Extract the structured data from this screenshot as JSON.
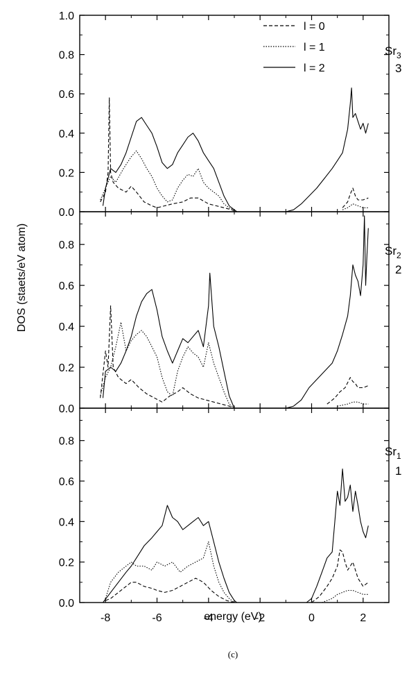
{
  "figure": {
    "caption": "(c)"
  },
  "chart_data": {
    "type": "line",
    "xlabel": "energy (eV)",
    "ylabel": "DOS (staets/eV atom)",
    "xlim": [
      -9.0,
      3.0
    ],
    "x_ticks": [
      -8,
      -6,
      -4,
      -2,
      0,
      2
    ],
    "x_tick_labels": [
      "-8",
      "-6",
      "-4",
      "-2",
      "0",
      "2"
    ],
    "legend": {
      "placement": "top-right of top panel",
      "entries": [
        {
          "label": "l = 0",
          "style": "dashed"
        },
        {
          "label": "l = 1",
          "style": "dotted"
        },
        {
          "label": "l = 2",
          "style": "solid"
        }
      ]
    },
    "grid": false,
    "panels": [
      {
        "id": "Sr3",
        "label_main": "Sr",
        "label_sub": "3",
        "label_number": "3",
        "ylim": [
          0.0,
          1.0
        ],
        "y_ticks": [
          0.0,
          0.2,
          0.4,
          0.6,
          0.8,
          1.0
        ],
        "y_tick_labels": [
          "0.0",
          "0.2",
          "0.4",
          "0.6",
          "0.8",
          "1.0"
        ],
        "series": [
          {
            "name": "l = 0",
            "style": "dashed",
            "x": [
              -8.2,
              -8.0,
              -7.9,
              -7.85,
              -7.8,
              -7.7,
              -7.5,
              -7.2,
              -7.0,
              -6.8,
              -6.5,
              -6.2,
              -6.0,
              -5.7,
              -5.4,
              -5.0,
              -4.7,
              -4.4,
              -4.0,
              -3.7,
              -3.4,
              -3.1,
              -2.9
            ],
            "y": [
              0.05,
              0.1,
              0.2,
              0.58,
              0.2,
              0.15,
              0.12,
              0.1,
              0.13,
              0.1,
              0.05,
              0.03,
              0.02,
              0.03,
              0.04,
              0.05,
              0.07,
              0.07,
              0.04,
              0.03,
              0.02,
              0.01,
              0.0
            ]
          },
          {
            "name": "l = 1",
            "style": "dotted",
            "x": [
              -8.2,
              -8.0,
              -7.8,
              -7.6,
              -7.3,
              -7.0,
              -6.8,
              -6.6,
              -6.4,
              -6.2,
              -6.0,
              -5.8,
              -5.6,
              -5.4,
              -5.2,
              -5.0,
              -4.8,
              -4.6,
              -4.4,
              -4.2,
              -4.0,
              -3.8,
              -3.6,
              -3.4,
              -3.2,
              -3.0,
              -2.9
            ],
            "y": [
              0.06,
              0.12,
              0.18,
              0.15,
              0.22,
              0.28,
              0.31,
              0.27,
              0.22,
              0.18,
              0.12,
              0.08,
              0.05,
              0.06,
              0.12,
              0.16,
              0.19,
              0.18,
              0.22,
              0.15,
              0.12,
              0.1,
              0.08,
              0.04,
              0.02,
              0.01,
              0.0
            ]
          },
          {
            "name": "l = 2",
            "style": "solid",
            "x": [
              -8.1,
              -8.0,
              -7.8,
              -7.6,
              -7.4,
              -7.2,
              -7.0,
              -6.8,
              -6.6,
              -6.4,
              -6.2,
              -6.0,
              -5.8,
              -5.6,
              -5.4,
              -5.2,
              -5.0,
              -4.8,
              -4.6,
              -4.4,
              -4.2,
              -4.0,
              -3.8,
              -3.6,
              -3.4,
              -3.2,
              -3.0,
              -2.9
            ],
            "y": [
              0.03,
              0.12,
              0.22,
              0.2,
              0.24,
              0.3,
              0.38,
              0.46,
              0.48,
              0.44,
              0.4,
              0.33,
              0.25,
              0.22,
              0.24,
              0.3,
              0.34,
              0.38,
              0.4,
              0.36,
              0.3,
              0.26,
              0.22,
              0.15,
              0.08,
              0.03,
              0.01,
              0.0
            ]
          }
        ],
        "series_cb": [
          {
            "name": "l = 0",
            "style": "dashed",
            "x": [
              1.2,
              1.4,
              1.5,
              1.6,
              1.7,
              1.8,
              2.0,
              2.2
            ],
            "y": [
              0.02,
              0.05,
              0.09,
              0.12,
              0.08,
              0.06,
              0.06,
              0.07
            ]
          },
          {
            "name": "l = 1",
            "style": "dotted",
            "x": [
              1.2,
              1.4,
              1.5,
              1.6,
              1.8,
              2.0,
              2.2
            ],
            "y": [
              0.01,
              0.02,
              0.03,
              0.04,
              0.03,
              0.02,
              0.02
            ]
          },
          {
            "name": "l = 2",
            "style": "solid",
            "x": [
              -1.0,
              -0.7,
              -0.4,
              -0.1,
              0.2,
              0.5,
              0.8,
              1.0,
              1.2,
              1.3,
              1.4,
              1.5,
              1.55,
              1.6,
              1.7,
              1.8,
              1.9,
              2.0,
              2.1,
              2.2
            ],
            "y": [
              0.0,
              0.01,
              0.04,
              0.08,
              0.12,
              0.17,
              0.22,
              0.26,
              0.3,
              0.36,
              0.42,
              0.55,
              0.63,
              0.48,
              0.5,
              0.46,
              0.42,
              0.45,
              0.4,
              0.45
            ]
          }
        ]
      },
      {
        "id": "Sr2",
        "label_main": "Sr",
        "label_sub": "2",
        "label_number": "2",
        "ylim": [
          0.0,
          0.96
        ],
        "y_ticks": [
          0.0,
          0.2,
          0.4,
          0.6,
          0.8
        ],
        "y_tick_labels": [
          "0.0",
          "0.2",
          "0.4",
          "0.6",
          "0.8"
        ],
        "series": [
          {
            "name": "l = 0",
            "style": "dashed",
            "x": [
              -8.2,
              -8.0,
              -7.9,
              -7.8,
              -7.7,
              -7.5,
              -7.2,
              -7.0,
              -6.7,
              -6.4,
              -6.1,
              -5.8,
              -5.5,
              -5.2,
              -5.0,
              -4.7,
              -4.4,
              -4.1,
              -3.8,
              -3.5,
              -3.2,
              -3.0
            ],
            "y": [
              0.05,
              0.28,
              0.2,
              0.5,
              0.2,
              0.15,
              0.12,
              0.14,
              0.1,
              0.07,
              0.05,
              0.03,
              0.06,
              0.08,
              0.1,
              0.07,
              0.05,
              0.04,
              0.03,
              0.02,
              0.01,
              0.0
            ]
          },
          {
            "name": "l = 1",
            "style": "dotted",
            "x": [
              -8.2,
              -8.0,
              -7.8,
              -7.6,
              -7.4,
              -7.2,
              -7.0,
              -6.8,
              -6.6,
              -6.4,
              -6.2,
              -6.0,
              -5.8,
              -5.6,
              -5.4,
              -5.2,
              -5.0,
              -4.8,
              -4.6,
              -4.4,
              -4.2,
              -4.0,
              -3.8,
              -3.6,
              -3.4,
              -3.2,
              -3.0
            ],
            "y": [
              0.06,
              0.15,
              0.2,
              0.3,
              0.42,
              0.28,
              0.33,
              0.36,
              0.38,
              0.35,
              0.3,
              0.25,
              0.15,
              0.08,
              0.06,
              0.18,
              0.25,
              0.3,
              0.27,
              0.25,
              0.2,
              0.32,
              0.22,
              0.15,
              0.08,
              0.02,
              0.0
            ]
          },
          {
            "name": "l = 2",
            "style": "solid",
            "x": [
              -8.1,
              -8.0,
              -7.8,
              -7.6,
              -7.4,
              -7.2,
              -7.0,
              -6.8,
              -6.6,
              -6.4,
              -6.2,
              -6.0,
              -5.8,
              -5.6,
              -5.4,
              -5.2,
              -5.0,
              -4.8,
              -4.6,
              -4.4,
              -4.2,
              -4.0,
              -3.95,
              -3.8,
              -3.6,
              -3.4,
              -3.2,
              -3.0
            ],
            "y": [
              0.05,
              0.18,
              0.2,
              0.18,
              0.22,
              0.28,
              0.35,
              0.45,
              0.52,
              0.56,
              0.58,
              0.48,
              0.35,
              0.28,
              0.22,
              0.28,
              0.34,
              0.32,
              0.35,
              0.38,
              0.3,
              0.5,
              0.66,
              0.4,
              0.3,
              0.18,
              0.06,
              0.0
            ]
          }
        ],
        "series_cb": [
          {
            "name": "l = 0",
            "style": "dashed",
            "x": [
              0.6,
              0.9,
              1.1,
              1.3,
              1.5,
              1.6,
              1.7,
              1.8,
              2.0,
              2.2
            ],
            "y": [
              0.02,
              0.05,
              0.08,
              0.1,
              0.15,
              0.13,
              0.12,
              0.1,
              0.1,
              0.11
            ]
          },
          {
            "name": "l = 1",
            "style": "dotted",
            "x": [
              1.0,
              1.4,
              1.6,
              1.8,
              2.0,
              2.2
            ],
            "y": [
              0.01,
              0.02,
              0.03,
              0.03,
              0.02,
              0.02
            ]
          },
          {
            "name": "l = 2",
            "style": "solid",
            "x": [
              -1.0,
              -0.7,
              -0.4,
              -0.1,
              0.2,
              0.5,
              0.8,
              1.0,
              1.2,
              1.4,
              1.5,
              1.6,
              1.7,
              1.8,
              1.9,
              2.0,
              2.05,
              2.1,
              2.15,
              2.2
            ],
            "y": [
              0.0,
              0.01,
              0.04,
              0.1,
              0.14,
              0.18,
              0.22,
              0.28,
              0.36,
              0.45,
              0.55,
              0.7,
              0.65,
              0.62,
              0.55,
              0.7,
              0.94,
              0.6,
              0.75,
              0.88
            ]
          }
        ]
      },
      {
        "id": "Sr1",
        "label_main": "Sr",
        "label_sub": "1",
        "label_number": "1",
        "ylim": [
          0.0,
          0.96
        ],
        "y_ticks": [
          0.0,
          0.2,
          0.4,
          0.6,
          0.8
        ],
        "y_tick_labels": [
          "0.0",
          "0.2",
          "0.4",
          "0.6",
          "0.8"
        ],
        "series": [
          {
            "name": "l = 0",
            "style": "dashed",
            "x": [
              -8.0,
              -7.8,
              -7.5,
              -7.2,
              -7.0,
              -6.8,
              -6.5,
              -6.2,
              -6.0,
              -5.7,
              -5.4,
              -5.1,
              -4.8,
              -4.5,
              -4.2,
              -3.9,
              -3.6,
              -3.3,
              -3.0
            ],
            "y": [
              0.01,
              0.02,
              0.05,
              0.08,
              0.1,
              0.1,
              0.08,
              0.07,
              0.06,
              0.05,
              0.06,
              0.08,
              0.1,
              0.12,
              0.1,
              0.06,
              0.03,
              0.01,
              0.0
            ]
          },
          {
            "name": "l = 1",
            "style": "dotted",
            "x": [
              -8.0,
              -7.8,
              -7.5,
              -7.2,
              -7.0,
              -6.8,
              -6.5,
              -6.2,
              -6.0,
              -5.7,
              -5.4,
              -5.1,
              -4.8,
              -4.5,
              -4.2,
              -4.0,
              -3.8,
              -3.6,
              -3.4,
              -3.2,
              -3.0
            ],
            "y": [
              0.02,
              0.1,
              0.15,
              0.18,
              0.2,
              0.18,
              0.18,
              0.16,
              0.2,
              0.18,
              0.2,
              0.15,
              0.18,
              0.2,
              0.22,
              0.3,
              0.18,
              0.1,
              0.05,
              0.02,
              0.0
            ]
          },
          {
            "name": "l = 2",
            "style": "solid",
            "x": [
              -8.1,
              -7.8,
              -7.5,
              -7.2,
              -7.0,
              -6.8,
              -6.5,
              -6.2,
              -6.0,
              -5.8,
              -5.6,
              -5.4,
              -5.2,
              -5.0,
              -4.8,
              -4.6,
              -4.4,
              -4.2,
              -4.0,
              -3.8,
              -3.6,
              -3.4,
              -3.2,
              -3.0,
              -2.9
            ],
            "y": [
              0.0,
              0.05,
              0.1,
              0.15,
              0.18,
              0.22,
              0.28,
              0.32,
              0.35,
              0.38,
              0.48,
              0.42,
              0.4,
              0.36,
              0.38,
              0.4,
              0.42,
              0.38,
              0.4,
              0.3,
              0.2,
              0.12,
              0.05,
              0.01,
              0.0
            ]
          }
        ],
        "series_cb": [
          {
            "name": "l = 0",
            "style": "dashed",
            "x": [
              0.0,
              0.3,
              0.6,
              0.8,
              1.0,
              1.1,
              1.2,
              1.3,
              1.4,
              1.6,
              1.8,
              2.0,
              2.2
            ],
            "y": [
              0.0,
              0.03,
              0.08,
              0.12,
              0.18,
              0.26,
              0.25,
              0.2,
              0.16,
              0.2,
              0.12,
              0.08,
              0.1
            ]
          },
          {
            "name": "l = 1",
            "style": "dotted",
            "x": [
              0.4,
              0.8,
              1.0,
              1.2,
              1.4,
              1.6,
              1.8,
              2.0,
              2.2
            ],
            "y": [
              0.0,
              0.02,
              0.04,
              0.05,
              0.06,
              0.06,
              0.05,
              0.04,
              0.04
            ]
          },
          {
            "name": "l = 2",
            "style": "solid",
            "x": [
              -0.2,
              0.0,
              0.2,
              0.4,
              0.6,
              0.8,
              0.9,
              1.0,
              1.1,
              1.2,
              1.3,
              1.4,
              1.5,
              1.6,
              1.7,
              1.8,
              1.9,
              2.0,
              2.1,
              2.2
            ],
            "y": [
              0.0,
              0.02,
              0.08,
              0.15,
              0.22,
              0.25,
              0.4,
              0.55,
              0.48,
              0.66,
              0.5,
              0.52,
              0.58,
              0.45,
              0.55,
              0.48,
              0.4,
              0.35,
              0.32,
              0.38
            ]
          }
        ]
      }
    ]
  }
}
